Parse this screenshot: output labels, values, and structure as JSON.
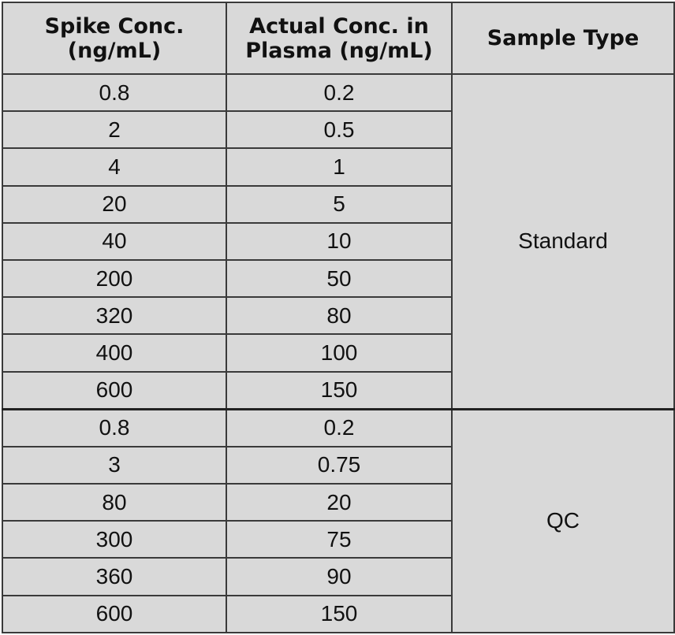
{
  "headers": {
    "spike_line1": "Spike Conc.",
    "spike_line2": "(ng/mL)",
    "actual_line1": "Actual Conc. in",
    "actual_line2": "Plasma (ng/mL)",
    "type": "Sample Type"
  },
  "groups": [
    {
      "type": "Standard",
      "rows": [
        {
          "spike": "0.8",
          "actual": "0.2"
        },
        {
          "spike": "2",
          "actual": "0.5"
        },
        {
          "spike": "4",
          "actual": "1"
        },
        {
          "spike": "20",
          "actual": "5"
        },
        {
          "spike": "40",
          "actual": "10"
        },
        {
          "spike": "200",
          "actual": "50"
        },
        {
          "spike": "320",
          "actual": "80"
        },
        {
          "spike": "400",
          "actual": "100"
        },
        {
          "spike": "600",
          "actual": "150"
        }
      ]
    },
    {
      "type": "QC",
      "rows": [
        {
          "spike": "0.8",
          "actual": "0.2"
        },
        {
          "spike": "3",
          "actual": "0.75"
        },
        {
          "spike": "80",
          "actual": "20"
        },
        {
          "spike": "300",
          "actual": "75"
        },
        {
          "spike": "360",
          "actual": "90"
        },
        {
          "spike": "600",
          "actual": "150"
        }
      ]
    }
  ]
}
